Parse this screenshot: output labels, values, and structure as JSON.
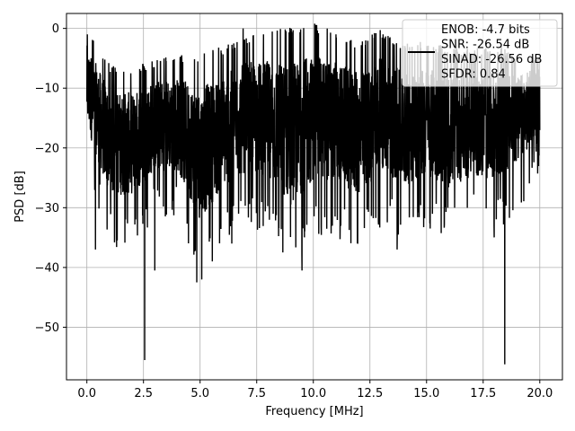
{
  "chart_data": {
    "type": "line",
    "title": "",
    "xlabel": "Frequency [MHz]",
    "ylabel": "PSD [dB]",
    "xlim": [
      -0.9,
      21.0
    ],
    "ylim": [
      -58.8,
      2.5
    ],
    "grid": true,
    "legend_position": "top-right",
    "xticks": [
      0.0,
      2.5,
      5.0,
      7.5,
      10.0,
      12.5,
      15.0,
      17.5,
      20.0
    ],
    "xtick_labels": [
      "0.0",
      "2.5",
      "5.0",
      "7.5",
      "10.0",
      "12.5",
      "15.0",
      "17.5",
      "20.0"
    ],
    "yticks": [
      0,
      -10,
      -20,
      -30,
      -40,
      -50
    ],
    "ytick_labels": [
      "0",
      "−10",
      "−20",
      "−30",
      "−40",
      "−50"
    ],
    "series": [
      {
        "name": "ENOB: -4.7 bits\nSNR: -26.54 dB\nSINAD: -26.56 dB\nSFDR: 0.84",
        "color": "#000000",
        "x_range": [
          0.0,
          20.0
        ],
        "envelope_max": [
          -1.2,
          -7.5,
          -8.0,
          -6.5,
          -6.0,
          -5.5,
          -4.5,
          -2.5,
          -2.0,
          -1.0,
          -0.5,
          -2.0,
          -3.5,
          -1.5,
          -4.0,
          -3.5,
          -4.5,
          -5.0,
          -4.0,
          -6.0,
          -5.5
        ],
        "envelope_min": [
          -24.0,
          -37.0,
          -36.5,
          -32.0,
          -32.0,
          -42.5,
          -36.0,
          -33.5,
          -34.0,
          -40.5,
          -35.5,
          -35.0,
          -38.0,
          -33.0,
          -36.0,
          -33.5,
          -36.0,
          -33.5,
          -35.0,
          -31.0,
          -24.0
        ],
        "notable_dips": [
          {
            "x": 2.55,
            "y": -55.5
          },
          {
            "x": 18.45,
            "y": -56.2
          },
          {
            "x": 4.85,
            "y": -42.5
          },
          {
            "x": 9.5,
            "y": -40.5
          },
          {
            "x": 3.0,
            "y": -40.5
          },
          {
            "x": 13.7,
            "y": -37.0
          },
          {
            "x": 0.38,
            "y": -37.0
          },
          {
            "x": 6.4,
            "y": -36.0
          }
        ],
        "notable_peaks": [
          {
            "x": 0.02,
            "y": -1.0
          },
          {
            "x": 6.9,
            "y": 0.0
          },
          {
            "x": 9.0,
            "y": -0.5
          }
        ]
      }
    ]
  }
}
